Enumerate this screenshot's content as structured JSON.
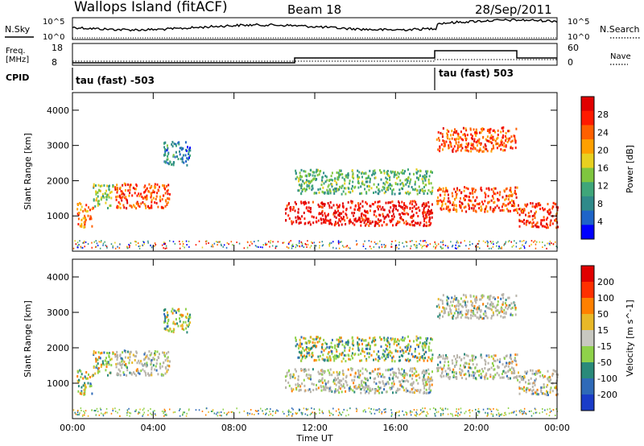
{
  "header": {
    "station": "Wallops Island (fitACF)",
    "beam": "Beam 18",
    "date": "28/Sep/2011"
  },
  "panels": {
    "nsky_label": "N.Sky",
    "nsearch_label": "N.Search",
    "freq_label_line1": "Freq.",
    "freq_label_line2": "[MHz]",
    "nave_label": "Nave",
    "cpid_label": "CPID",
    "cpid_segments": [
      {
        "label": "tau (fast) -503",
        "start_hour": 0
      },
      {
        "label": "tau (fast) 503",
        "start_hour": 18
      }
    ],
    "noise_ticks": [
      "10^5",
      "10^0"
    ],
    "noise_right_ticks": [
      "10^5",
      "10^0"
    ],
    "freq_ticks": [
      "18",
      "8"
    ],
    "nave_ticks": [
      "60",
      "0"
    ]
  },
  "chart_data": [
    {
      "type": "heatmap",
      "title": "",
      "xlabel": "Time UT",
      "ylabel": "Slant Range [km]",
      "xlim_hours": [
        0,
        24
      ],
      "ylim_km": [
        0,
        4500
      ],
      "x_ticks": [
        "00:00",
        "04:00",
        "08:00",
        "12:00",
        "16:00",
        "20:00",
        "00:00"
      ],
      "y_ticks": [
        1000,
        2000,
        3000,
        4000
      ],
      "colorbar": {
        "label": "Power [dB]",
        "ticks": [
          4,
          8,
          12,
          16,
          20,
          24,
          28
        ],
        "colors": [
          "#0000ff",
          "#1e64c8",
          "#2f8a8a",
          "#3fa67a",
          "#7fc63f",
          "#e8d020",
          "#ffa000",
          "#ff6000",
          "#ff1a00",
          "#e00000"
        ]
      },
      "echo_bands": [
        {
          "start_hour": 0.2,
          "end_hour": 1.0,
          "range_km": 1050,
          "power_db": 22
        },
        {
          "start_hour": 1.0,
          "end_hour": 2.0,
          "range_km": 1600,
          "power_db": 14
        },
        {
          "start_hour": 2.0,
          "end_hour": 4.8,
          "range_km": 1600,
          "power_db": 24
        },
        {
          "start_hour": 4.5,
          "end_hour": 5.8,
          "range_km": 2800,
          "power_db": 8
        },
        {
          "start_hour": 10.5,
          "end_hour": 17.8,
          "range_km": 1100,
          "power_db": 28
        },
        {
          "start_hour": 11.0,
          "end_hour": 17.8,
          "range_km": 2000,
          "power_db": 12
        },
        {
          "start_hour": 18.0,
          "end_hour": 22.0,
          "range_km": 1500,
          "power_db": 24
        },
        {
          "start_hour": 18.0,
          "end_hour": 22.0,
          "range_km": 3200,
          "power_db": 24
        },
        {
          "start_hour": 22.0,
          "end_hour": 24.0,
          "range_km": 1050,
          "power_db": 26
        }
      ]
    },
    {
      "type": "heatmap",
      "title": "",
      "xlabel": "Time UT",
      "ylabel": "Slant Range [km]",
      "xlim_hours": [
        0,
        24
      ],
      "ylim_km": [
        0,
        4500
      ],
      "x_ticks": [
        "00:00",
        "04:00",
        "08:00",
        "12:00",
        "16:00",
        "20:00",
        "00:00"
      ],
      "y_ticks": [
        1000,
        2000,
        3000,
        4000
      ],
      "colorbar": {
        "label": "Velocity [m s^-1]",
        "ticks": [
          200,
          100,
          50,
          15,
          -15,
          -50,
          -100,
          -200
        ],
        "colors": [
          "#1a3cc8",
          "#2f6ab8",
          "#2a8a7a",
          "#8fd24a",
          "#c8c8c0",
          "#e8b828",
          "#ff8000",
          "#ff3000",
          "#e00000"
        ]
      },
      "ground_scatter_color": "#b8b4aa"
    }
  ]
}
